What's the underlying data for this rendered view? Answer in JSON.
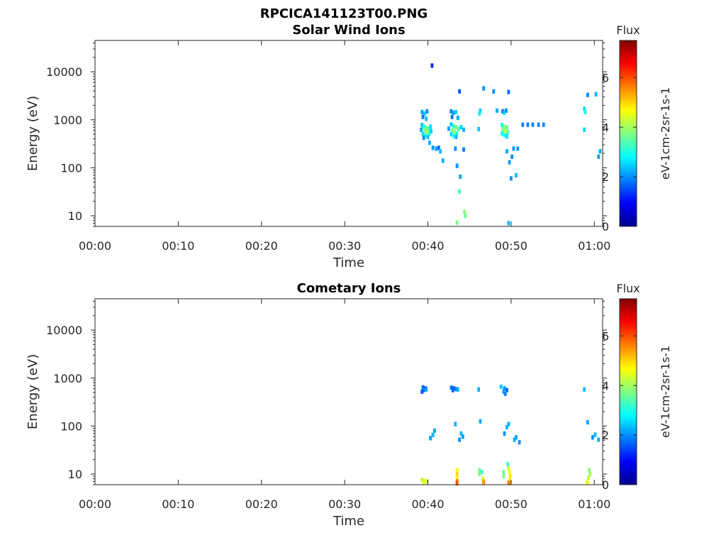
{
  "figure_title": "RPCICA141123T00.PNG",
  "chart_data": [
    {
      "type": "heatmap",
      "title": "Solar Wind Ions",
      "xlabel": "Time",
      "ylabel": "Energy (eV)",
      "x_unit": "minutes",
      "xlim": [
        0,
        61
      ],
      "ylim": [
        6,
        45000
      ],
      "yscale": "log",
      "x_ticks": [
        0,
        10,
        20,
        30,
        40,
        50,
        60
      ],
      "x_tick_labels": [
        "00:00",
        "00:10",
        "00:20",
        "00:30",
        "00:40",
        "00:50",
        "01:00"
      ],
      "y_ticks": [
        10,
        100,
        1000,
        10000
      ],
      "y_tick_labels": [
        "10",
        "100",
        "1000",
        "10000"
      ],
      "colorbar": {
        "title": "Flux",
        "label": "eV-1cm-2sr-1s-1",
        "range": [
          0,
          7.5
        ],
        "ticks": [
          0,
          2,
          4,
          6
        ],
        "tick_labels": [
          "0",
          "2",
          "4",
          "6"
        ]
      },
      "cells": [
        [
          39.3,
          1450,
          2.2
        ],
        [
          39.6,
          1350,
          2.4
        ],
        [
          39.9,
          1500,
          2.0
        ],
        [
          39.4,
          1150,
          1.8
        ],
        [
          39.8,
          1050,
          2.3
        ],
        [
          39.3,
          780,
          2.3
        ],
        [
          39.5,
          720,
          3.0
        ],
        [
          39.8,
          680,
          3.6
        ],
        [
          40.1,
          640,
          3.4
        ],
        [
          39.6,
          600,
          3.8
        ],
        [
          39.9,
          560,
          4.0
        ],
        [
          40.2,
          520,
          3.2
        ],
        [
          39.4,
          500,
          2.6
        ],
        [
          39.7,
          470,
          3.0
        ],
        [
          40.0,
          440,
          2.4
        ],
        [
          39.5,
          420,
          2.0
        ],
        [
          40.3,
          720,
          2.6
        ],
        [
          39.2,
          620,
          2.2
        ],
        [
          40.4,
          580,
          2.5
        ],
        [
          40.2,
          330,
          2.2
        ],
        [
          40.6,
          260,
          2.0
        ],
        [
          41.0,
          250,
          2.2
        ],
        [
          41.3,
          260,
          1.7
        ],
        [
          41.5,
          220,
          2.3
        ],
        [
          41.8,
          140,
          2.2
        ],
        [
          40.5,
          13500,
          1.2
        ],
        [
          42.8,
          1500,
          1.9
        ],
        [
          43.1,
          1400,
          2.2
        ],
        [
          43.4,
          1450,
          2.5
        ],
        [
          42.9,
          1150,
          1.8
        ],
        [
          43.6,
          1100,
          2.2
        ],
        [
          42.8,
          800,
          2.4
        ],
        [
          43.1,
          740,
          3.2
        ],
        [
          43.4,
          700,
          3.7
        ],
        [
          43.7,
          650,
          3.4
        ],
        [
          42.9,
          600,
          3.6
        ],
        [
          43.2,
          560,
          4.0
        ],
        [
          43.5,
          530,
          3.2
        ],
        [
          42.8,
          500,
          2.6
        ],
        [
          43.1,
          460,
          3.0
        ],
        [
          43.4,
          440,
          2.3
        ],
        [
          44.0,
          700,
          2.5
        ],
        [
          44.3,
          620,
          2.2
        ],
        [
          42.5,
          650,
          2.1
        ],
        [
          43.8,
          3900,
          1.6
        ],
        [
          43.3,
          250,
          2.0
        ],
        [
          43.5,
          110,
          2.0
        ],
        [
          44.3,
          240,
          1.9
        ],
        [
          43.9,
          65,
          2.1
        ],
        [
          43.8,
          32,
          3.2
        ],
        [
          44.4,
          12,
          3.8
        ],
        [
          44.5,
          10,
          3.6
        ],
        [
          43.5,
          7.2,
          3.7
        ],
        [
          46.3,
          1550,
          2.5
        ],
        [
          46.2,
          1350,
          2.7
        ],
        [
          46.1,
          640,
          2.4
        ],
        [
          46.7,
          4500,
          2.0
        ],
        [
          47.9,
          3900,
          2.0
        ],
        [
          48.3,
          1550,
          2.2
        ],
        [
          49.0,
          1500,
          1.7
        ],
        [
          49.2,
          1400,
          2.6
        ],
        [
          49.4,
          1550,
          2.0
        ],
        [
          48.9,
          780,
          3.0
        ],
        [
          49.2,
          720,
          3.8
        ],
        [
          49.5,
          680,
          3.5
        ],
        [
          49.0,
          630,
          3.7
        ],
        [
          49.3,
          580,
          4.2
        ],
        [
          49.6,
          540,
          3.4
        ],
        [
          48.9,
          520,
          2.8
        ],
        [
          49.2,
          480,
          3.1
        ],
        [
          49.5,
          450,
          2.6
        ],
        [
          49.7,
          3800,
          1.7
        ],
        [
          49.5,
          220,
          2.2
        ],
        [
          49.8,
          130,
          2.1
        ],
        [
          50.1,
          170,
          2.0
        ],
        [
          50.3,
          250,
          2.1
        ],
        [
          50.0,
          60,
          2.0
        ],
        [
          50.6,
          70,
          2.3
        ],
        [
          49.7,
          7,
          2.3
        ],
        [
          50.8,
          250,
          2.1
        ],
        [
          51.4,
          790,
          1.9
        ],
        [
          52.0,
          790,
          1.9
        ],
        [
          52.6,
          790,
          1.9
        ],
        [
          53.3,
          790,
          1.9
        ],
        [
          53.9,
          790,
          1.9
        ],
        [
          58.8,
          1700,
          2.6
        ],
        [
          58.9,
          1450,
          2.9
        ],
        [
          58.8,
          620,
          2.5
        ],
        [
          59.2,
          3300,
          2.0
        ],
        [
          60.2,
          3400,
          2.2
        ],
        [
          60.5,
          170,
          2.1
        ],
        [
          60.7,
          220,
          2.2
        ]
      ]
    },
    {
      "type": "heatmap",
      "title": "Cometary Ions",
      "xlabel": "Time",
      "ylabel": "Energy (eV)",
      "x_unit": "minutes",
      "xlim": [
        0,
        61
      ],
      "ylim": [
        6,
        45000
      ],
      "yscale": "log",
      "x_ticks": [
        0,
        10,
        20,
        30,
        40,
        50,
        60
      ],
      "x_tick_labels": [
        "00:00",
        "00:10",
        "00:20",
        "00:30",
        "00:40",
        "00:50",
        "01:00"
      ],
      "y_ticks": [
        10,
        100,
        1000,
        10000
      ],
      "y_tick_labels": [
        "10",
        "100",
        "1000",
        "10000"
      ],
      "colorbar": {
        "title": "Flux",
        "label": "eV-1cm-2sr-1s-1",
        "range": [
          0,
          7.5
        ],
        "ticks": [
          0,
          2,
          4,
          6
        ],
        "tick_labels": [
          "0",
          "2",
          "4",
          "6"
        ]
      },
      "cells": [
        [
          39.4,
          640,
          1.7
        ],
        [
          39.7,
          610,
          1.5
        ],
        [
          39.5,
          560,
          1.9
        ],
        [
          39.3,
          520,
          1.6
        ],
        [
          39.8,
          580,
          2.1
        ],
        [
          42.8,
          630,
          1.8
        ],
        [
          43.1,
          610,
          1.6
        ],
        [
          43.4,
          590,
          1.9
        ],
        [
          43.6,
          580,
          2.2
        ],
        [
          43.0,
          560,
          1.7
        ],
        [
          46.1,
          580,
          2.2
        ],
        [
          48.8,
          660,
          2.4
        ],
        [
          49.2,
          610,
          2.0
        ],
        [
          49.5,
          560,
          1.7
        ],
        [
          49.1,
          520,
          2.1
        ],
        [
          49.3,
          470,
          1.9
        ],
        [
          58.8,
          580,
          2.3
        ],
        [
          40.8,
          80,
          2.2
        ],
        [
          40.6,
          65,
          2.3
        ],
        [
          40.3,
          56,
          2.1
        ],
        [
          43.3,
          110,
          2.2
        ],
        [
          44.0,
          70,
          2.3
        ],
        [
          44.2,
          60,
          2.1
        ],
        [
          43.8,
          52,
          2.0
        ],
        [
          46.3,
          125,
          2.2
        ],
        [
          49.7,
          110,
          2.2
        ],
        [
          49.5,
          95,
          2.3
        ],
        [
          49.2,
          70,
          2.0
        ],
        [
          50.6,
          58,
          2.1
        ],
        [
          50.4,
          52,
          2.2
        ],
        [
          51.0,
          46,
          2.0
        ],
        [
          59.2,
          120,
          2.2
        ],
        [
          60.1,
          66,
          2.3
        ],
        [
          59.8,
          58,
          2.0
        ],
        [
          60.5,
          52,
          2.2
        ],
        [
          39.3,
          7.5,
          4.2
        ],
        [
          39.6,
          7.2,
          4.6
        ],
        [
          39.9,
          7.0,
          4.3
        ],
        [
          39.5,
          6.6,
          4.5
        ],
        [
          43.5,
          12,
          4.7
        ],
        [
          43.5,
          10,
          5.0
        ],
        [
          43.5,
          8.5,
          4.8
        ],
        [
          43.5,
          7.0,
          5.8
        ],
        [
          43.5,
          6.4,
          6.0
        ],
        [
          46.2,
          12,
          3.6
        ],
        [
          46.2,
          10,
          3.8
        ],
        [
          46.5,
          11,
          3.2
        ],
        [
          46.6,
          8.0,
          4.4
        ],
        [
          46.7,
          7.0,
          5.4
        ],
        [
          46.7,
          6.5,
          5.5
        ],
        [
          49.1,
          11,
          3.6
        ],
        [
          49.1,
          9,
          3.8
        ],
        [
          49.6,
          16,
          3.2
        ],
        [
          49.7,
          13,
          4.4
        ],
        [
          49.8,
          11,
          4.7
        ],
        [
          49.9,
          9,
          4.8
        ],
        [
          49.8,
          7.2,
          4.9
        ],
        [
          49.7,
          6.5,
          5.7
        ],
        [
          49.9,
          6.5,
          5.4
        ],
        [
          59.4,
          12,
          3.8
        ],
        [
          59.5,
          10,
          4.0
        ],
        [
          59.3,
          8.5,
          4.2
        ],
        [
          59.1,
          7.0,
          4.3
        ],
        [
          59.2,
          6.5,
          4.6
        ]
      ]
    }
  ]
}
